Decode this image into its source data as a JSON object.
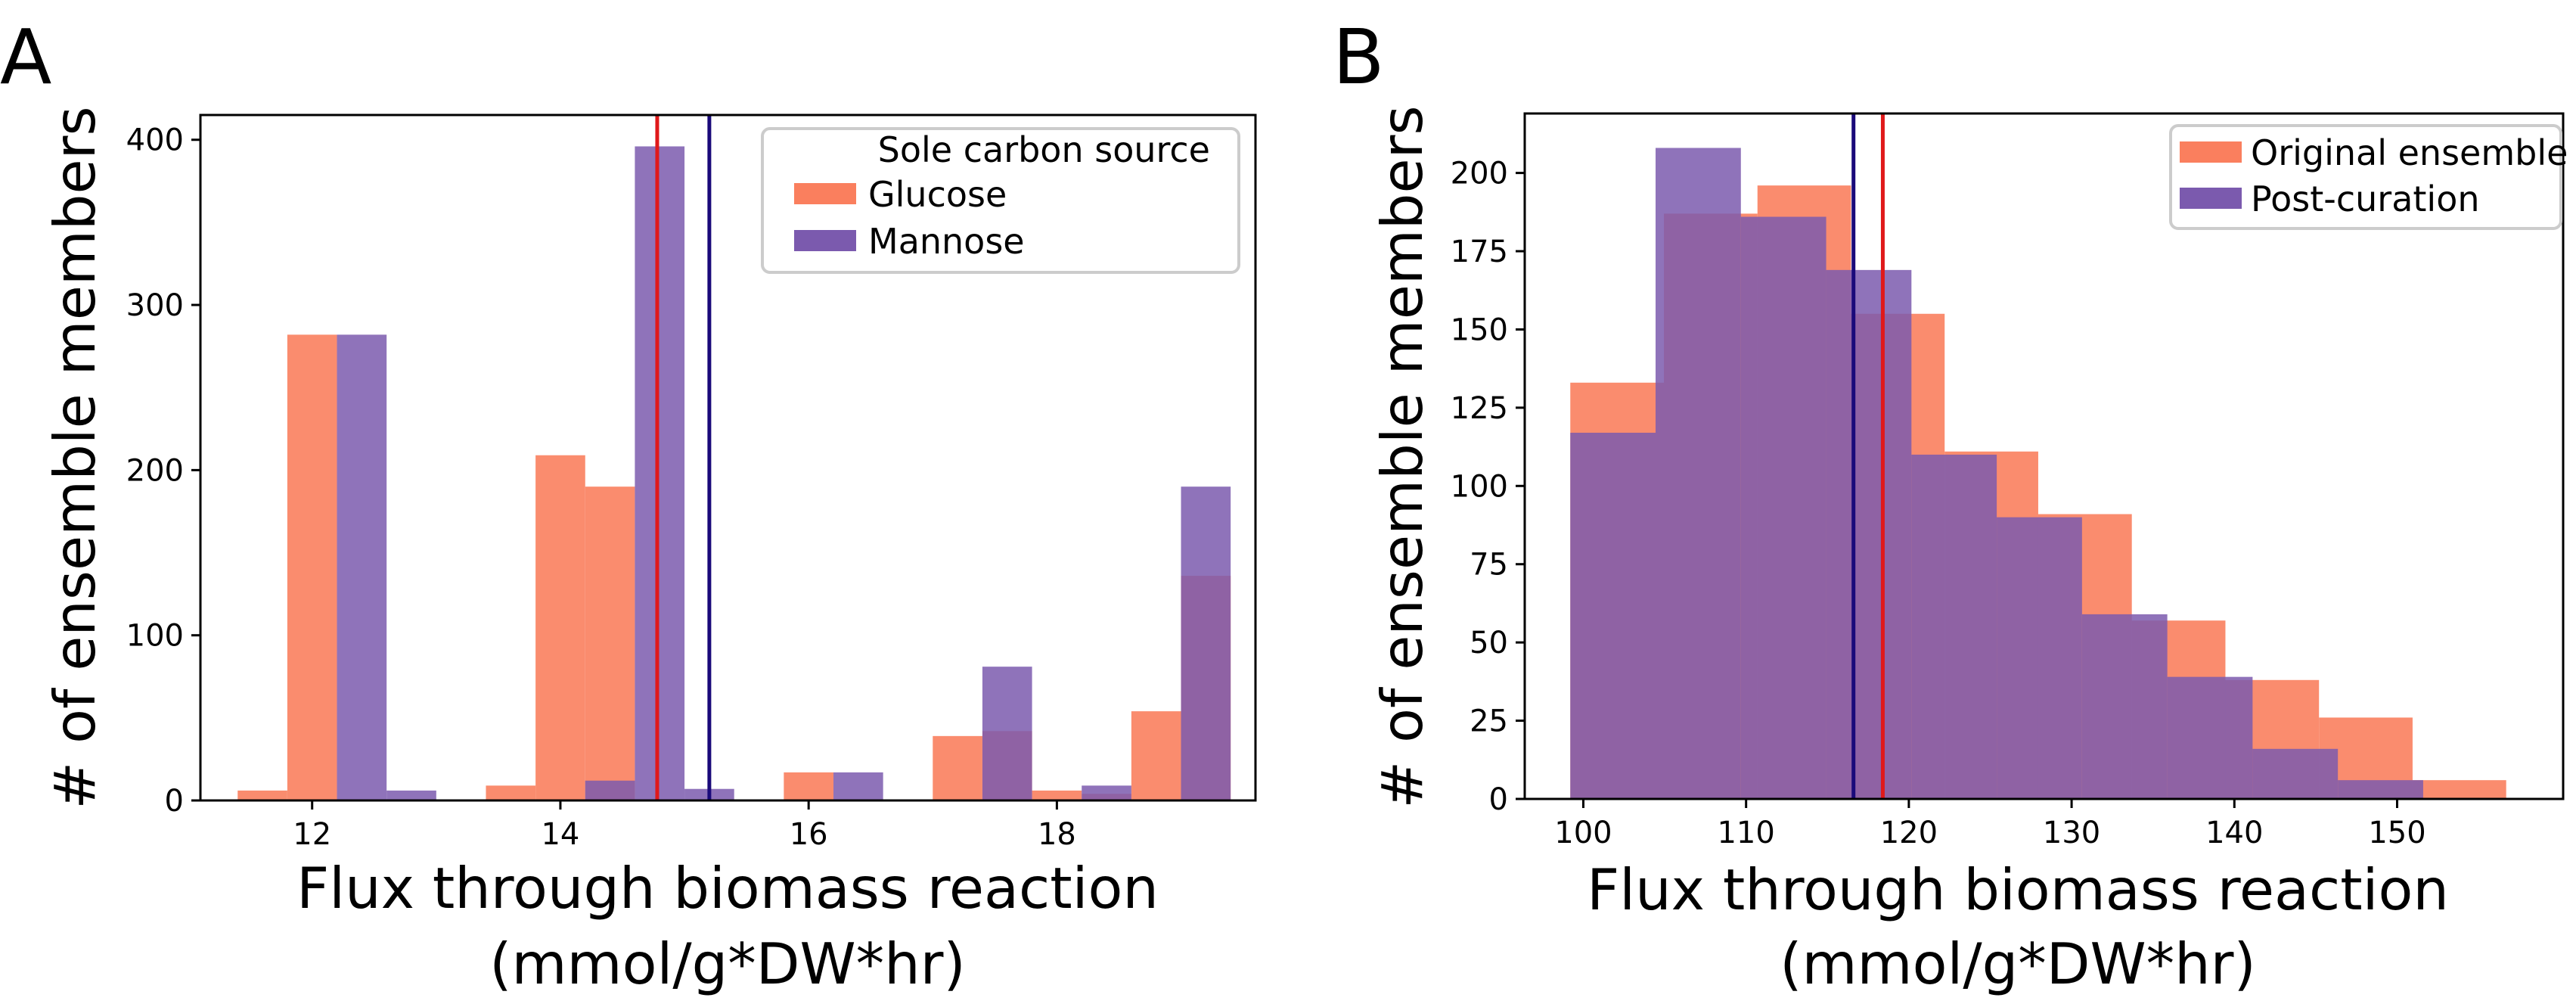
{
  "chart_data": [
    {
      "panel_label": "A",
      "type": "bar",
      "subtype": "overlapping-histogram",
      "xlabel": "Flux through biomass reaction",
      "xlabel_units": "(mmol/g*DW*hr)",
      "ylabel": "# of ensemble members",
      "xlim": [
        11.1,
        19.6
      ],
      "ylim": [
        0,
        415
      ],
      "xticks": [
        12,
        14,
        16,
        18
      ],
      "yticks": [
        0,
        100,
        200,
        300,
        400
      ],
      "legend": {
        "title": "Sole carbon source",
        "placement": "top-right",
        "entries": [
          "Glucose",
          "Mannose"
        ]
      },
      "series": [
        {
          "name": "Glucose",
          "color": "#fa7f5e",
          "bins": [
            {
              "x0": 11.4,
              "x1": 11.8,
              "value": 6
            },
            {
              "x0": 11.8,
              "x1": 12.2,
              "value": 282
            },
            {
              "x0": 13.4,
              "x1": 13.8,
              "value": 9
            },
            {
              "x0": 13.8,
              "x1": 14.2,
              "value": 209
            },
            {
              "x0": 14.2,
              "x1": 14.6,
              "value": 190
            },
            {
              "x0": 15.8,
              "x1": 16.2,
              "value": 17
            },
            {
              "x0": 17.0,
              "x1": 17.4,
              "value": 39
            },
            {
              "x0": 17.4,
              "x1": 17.8,
              "value": 42
            },
            {
              "x0": 17.8,
              "x1": 18.2,
              "value": 6
            },
            {
              "x0": 18.2,
              "x1": 18.6,
              "value": 4
            },
            {
              "x0": 18.6,
              "x1": 19.0,
              "value": 54
            },
            {
              "x0": 19.0,
              "x1": 19.4,
              "value": 136
            }
          ]
        },
        {
          "name": "Mannose",
          "color": "#7b5aae",
          "bins": [
            {
              "x0": 12.2,
              "x1": 12.6,
              "value": 282
            },
            {
              "x0": 12.6,
              "x1": 13.0,
              "value": 6
            },
            {
              "x0": 14.2,
              "x1": 14.6,
              "value": 12
            },
            {
              "x0": 14.6,
              "x1": 15.0,
              "value": 396
            },
            {
              "x0": 15.0,
              "x1": 15.4,
              "value": 7
            },
            {
              "x0": 16.2,
              "x1": 16.6,
              "value": 17
            },
            {
              "x0": 17.4,
              "x1": 17.8,
              "value": 81
            },
            {
              "x0": 18.2,
              "x1": 18.6,
              "value": 9
            },
            {
              "x0": 19.0,
              "x1": 19.4,
              "value": 190
            }
          ]
        }
      ],
      "vlines": [
        {
          "x": 14.78,
          "color": "#e0191a"
        },
        {
          "x": 15.2,
          "color": "#1a0a7a"
        }
      ]
    },
    {
      "panel_label": "B",
      "type": "bar",
      "subtype": "overlapping-histogram",
      "xlabel": "Flux through biomass reaction",
      "xlabel_units": "(mmol/g*DW*hr)",
      "ylabel": "# of ensemble members",
      "xlim": [
        96.4,
        160.2
      ],
      "ylim": [
        0,
        219
      ],
      "xticks": [
        100,
        110,
        120,
        130,
        140,
        150
      ],
      "yticks": [
        0,
        25,
        50,
        75,
        100,
        125,
        150,
        175,
        200
      ],
      "legend": {
        "title": "",
        "placement": "top-right",
        "entries": [
          "Original ensemble",
          "Post-curation"
        ]
      },
      "series": [
        {
          "name": "Original ensemble",
          "color": "#fa7f5e",
          "bins": [
            {
              "x0": 99.2,
              "x1": 104.95,
              "value": 133
            },
            {
              "x0": 104.95,
              "x1": 110.7,
              "value": 187
            },
            {
              "x0": 110.7,
              "x1": 116.45,
              "value": 196
            },
            {
              "x0": 116.45,
              "x1": 122.2,
              "value": 155
            },
            {
              "x0": 122.2,
              "x1": 127.95,
              "value": 111
            },
            {
              "x0": 127.95,
              "x1": 133.7,
              "value": 91
            },
            {
              "x0": 133.7,
              "x1": 139.45,
              "value": 57
            },
            {
              "x0": 139.45,
              "x1": 145.2,
              "value": 38
            },
            {
              "x0": 145.2,
              "x1": 150.95,
              "value": 26
            },
            {
              "x0": 150.95,
              "x1": 156.7,
              "value": 6
            }
          ]
        },
        {
          "name": "Post-curation",
          "color": "#7b5aae",
          "bins": [
            {
              "x0": 99.2,
              "x1": 104.44,
              "value": 117
            },
            {
              "x0": 104.44,
              "x1": 109.68,
              "value": 208
            },
            {
              "x0": 109.68,
              "x1": 114.92,
              "value": 186
            },
            {
              "x0": 114.92,
              "x1": 120.16,
              "value": 169
            },
            {
              "x0": 120.16,
              "x1": 125.4,
              "value": 110
            },
            {
              "x0": 125.4,
              "x1": 130.64,
              "value": 90
            },
            {
              "x0": 130.64,
              "x1": 135.88,
              "value": 59
            },
            {
              "x0": 135.88,
              "x1": 141.12,
              "value": 39
            },
            {
              "x0": 141.12,
              "x1": 146.36,
              "value": 16
            },
            {
              "x0": 146.36,
              "x1": 151.6,
              "value": 6
            }
          ]
        }
      ],
      "vlines": [
        {
          "x": 116.6,
          "color": "#1a0a7a"
        },
        {
          "x": 118.4,
          "color": "#e0191a"
        }
      ]
    }
  ]
}
